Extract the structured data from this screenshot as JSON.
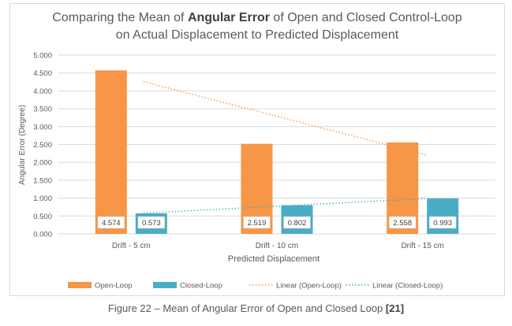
{
  "chart_data": {
    "type": "bar",
    "title_pre": "Comparing the Mean of ",
    "title_bold": "Angular Error",
    "title_post": " of Open and Closed Control-Loop",
    "title_line2": "on Actual Displacement to Predicted Displacement",
    "xlabel": "Predicted Displacement",
    "ylabel": "Angular Error (Degree)",
    "ylim": [
      0,
      5
    ],
    "yticks": [
      "0.000",
      "0.500",
      "1.000",
      "1.500",
      "2.000",
      "2.500",
      "3.000",
      "3.500",
      "4.000",
      "4.500",
      "5.000"
    ],
    "categories": [
      "Drift - 5 cm",
      "Drift - 10 cm",
      "Drift - 15 cm"
    ],
    "series": [
      {
        "name": "Open-Loop",
        "color": "#f79646",
        "values": [
          4.574,
          2.519,
          2.558
        ],
        "labels": [
          "4.574",
          "2.519",
          "2.558"
        ]
      },
      {
        "name": "Closed-Loop",
        "color": "#4bacc6",
        "values": [
          0.573,
          0.802,
          0.993
        ],
        "labels": [
          "0.573",
          "0.802",
          "0.993"
        ]
      }
    ],
    "trendlines": [
      {
        "name": "Linear (Open-Loop)",
        "color": "#f79646",
        "start": 4.26,
        "end": 2.2
      },
      {
        "name": "Linear (Closed-Loop)",
        "color": "#4bacc6",
        "start": 0.58,
        "end": 0.99
      }
    ],
    "grid": true,
    "legend": "bottom"
  },
  "caption": {
    "text": "Figure 22 – Mean of Angular Error of Open and Closed Loop ",
    "ref": "[21]"
  }
}
